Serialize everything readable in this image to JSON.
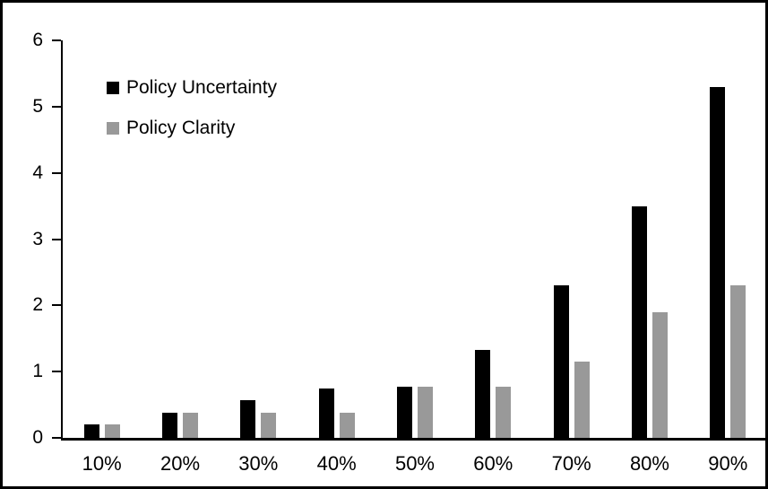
{
  "chart_data": {
    "type": "bar",
    "title": "",
    "xlabel": "",
    "ylabel": "",
    "categories": [
      "10%",
      "20%",
      "30%",
      "40%",
      "50%",
      "60%",
      "70%",
      "80%",
      "90%"
    ],
    "series": [
      {
        "name": "Policy Uncertainty",
        "color": "#000000",
        "values": [
          0.2,
          0.38,
          0.57,
          0.75,
          0.77,
          1.33,
          2.3,
          3.5,
          5.3
        ]
      },
      {
        "name": "Policy Clarity",
        "color": "#999999",
        "values": [
          0.2,
          0.38,
          0.38,
          0.38,
          0.77,
          0.77,
          1.15,
          1.9,
          2.3
        ]
      }
    ],
    "ylim": [
      0,
      6
    ],
    "yticks": [
      "0",
      "1",
      "2",
      "3",
      "4",
      "5",
      "6"
    ],
    "grid": false,
    "legend_position": "inside-top-left",
    "frame_border_color": "#000000",
    "background_color": "#ffffff"
  }
}
